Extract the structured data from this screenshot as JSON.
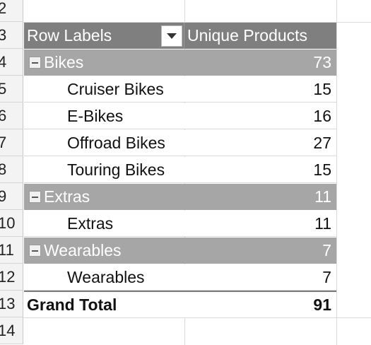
{
  "row_numbers": [
    "2",
    "3",
    "4",
    "5",
    "6",
    "7",
    "8",
    "9",
    "10",
    "11",
    "12",
    "13",
    "14"
  ],
  "pivot": {
    "header": {
      "row_labels": "Row Labels",
      "values_label": "Unique Products"
    },
    "groups": [
      {
        "label": "Bikes",
        "value": "73",
        "items": [
          {
            "label": "Cruiser Bikes",
            "value": "15"
          },
          {
            "label": "E-Bikes",
            "value": "16"
          },
          {
            "label": "Offroad Bikes",
            "value": "27"
          },
          {
            "label": "Touring Bikes",
            "value": "15"
          }
        ]
      },
      {
        "label": "Extras",
        "value": "11",
        "items": [
          {
            "label": "Extras",
            "value": "11"
          }
        ]
      },
      {
        "label": "Wearables",
        "value": "7",
        "items": [
          {
            "label": "Wearables",
            "value": "7"
          }
        ]
      }
    ],
    "grand_total": {
      "label": "Grand Total",
      "value": "91"
    }
  },
  "colors": {
    "header_fill": "#7f7f7f",
    "group_fill": "#a6a6a6",
    "header_text": "#ffffff",
    "body_text": "#111111"
  },
  "icons": {
    "filter_dropdown": "chevron-down-icon",
    "group_toggle": "collapse-minus-icon"
  }
}
